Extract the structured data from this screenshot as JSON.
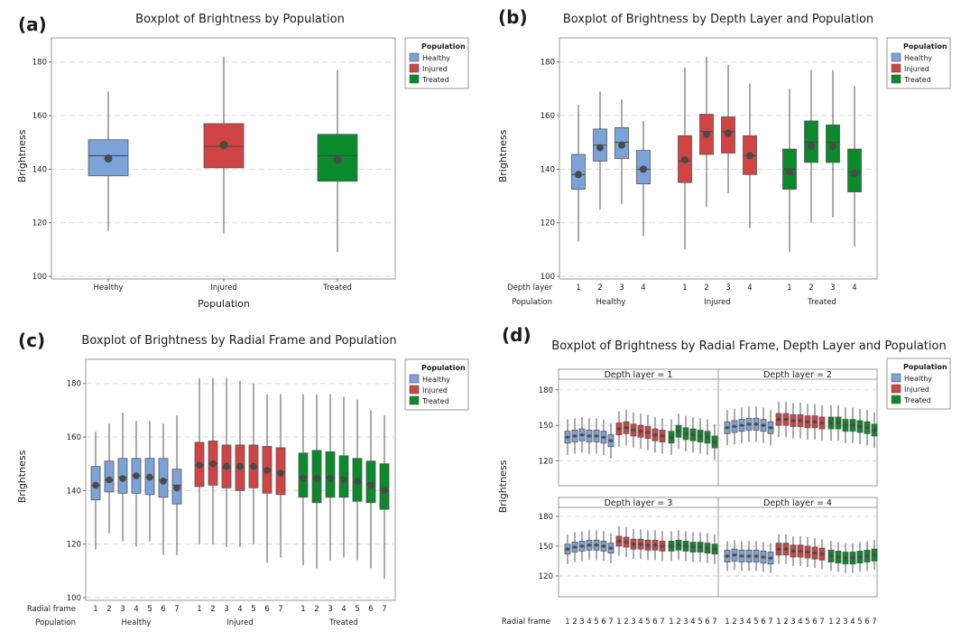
{
  "figure": {
    "panel_labels": [
      "(a)",
      "(b)",
      "(c)",
      "(d)"
    ]
  },
  "legend": {
    "title": "Population",
    "items": [
      "Healthy",
      "Injured",
      "Treated"
    ]
  },
  "colors": {
    "Healthy": "#7ba3d9",
    "Injured": "#d04444",
    "Treated": "#0a8a2a",
    "mean": "#4a4a4a",
    "whisker": "#555555",
    "grid": "#d8d8d8",
    "frame": "#9a9a9a"
  },
  "chart_data": [
    {
      "panel": "(a)",
      "type": "boxplot",
      "title": "Boxplot of Brightness by Population",
      "xlabel": "Population",
      "ylabel": "Brightness",
      "ylim": [
        99,
        189
      ],
      "yticks": [
        100,
        120,
        140,
        160,
        180
      ],
      "groups": [
        "Healthy",
        "Injured",
        "Treated"
      ],
      "boxes": [
        {
          "group": "Healthy",
          "min": 117,
          "q1": 137.5,
          "median": 145,
          "q3": 151,
          "max": 169,
          "mean": 144
        },
        {
          "group": "Injured",
          "min": 116,
          "q1": 140.5,
          "median": 148.5,
          "q3": 157,
          "max": 182,
          "mean": 149
        },
        {
          "group": "Treated",
          "min": 109,
          "q1": 135.5,
          "median": 145,
          "q3": 153,
          "max": 177,
          "mean": 143.5
        }
      ]
    },
    {
      "panel": "(b)",
      "type": "boxplot",
      "title": "Boxplot of Brightness by Depth Layer and Population",
      "xlabel": "",
      "ylabel": "Brightness",
      "ylim": [
        99,
        189
      ],
      "yticks": [
        100,
        120,
        140,
        160,
        180
      ],
      "row_labels": [
        "Depth layer",
        "Population"
      ],
      "groups": [
        "Healthy",
        "Injured",
        "Treated"
      ],
      "subgroups": [
        "1",
        "2",
        "3",
        "4"
      ],
      "boxes": [
        {
          "group": "Healthy",
          "sub": "1",
          "min": 113,
          "q1": 132.5,
          "median": 138,
          "q3": 145.5,
          "max": 164,
          "mean": 138
        },
        {
          "group": "Healthy",
          "sub": "2",
          "min": 125,
          "q1": 143,
          "median": 149,
          "q3": 155,
          "max": 169,
          "mean": 148
        },
        {
          "group": "Healthy",
          "sub": "3",
          "min": 127,
          "q1": 144,
          "median": 150,
          "q3": 155.5,
          "max": 166,
          "mean": 149
        },
        {
          "group": "Healthy",
          "sub": "4",
          "min": 115,
          "q1": 134.5,
          "median": 140,
          "q3": 147,
          "max": 158,
          "mean": 140
        },
        {
          "group": "Injured",
          "sub": "1",
          "min": 110,
          "q1": 135,
          "median": 143,
          "q3": 152.5,
          "max": 178,
          "mean": 143.5
        },
        {
          "group": "Injured",
          "sub": "2",
          "min": 126,
          "q1": 145.5,
          "median": 154,
          "q3": 160.5,
          "max": 182,
          "mean": 153
        },
        {
          "group": "Injured",
          "sub": "3",
          "min": 131,
          "q1": 146,
          "median": 154,
          "q3": 159.5,
          "max": 179,
          "mean": 153.5
        },
        {
          "group": "Injured",
          "sub": "4",
          "min": 118,
          "q1": 138,
          "median": 145,
          "q3": 152.5,
          "max": 172,
          "mean": 145
        },
        {
          "group": "Treated",
          "sub": "1",
          "min": 109,
          "q1": 132.5,
          "median": 140,
          "q3": 147.5,
          "max": 170,
          "mean": 139
        },
        {
          "group": "Treated",
          "sub": "2",
          "min": 120,
          "q1": 142.5,
          "median": 150,
          "q3": 158,
          "max": 177,
          "mean": 148.5
        },
        {
          "group": "Treated",
          "sub": "3",
          "min": 122,
          "q1": 142.5,
          "median": 150,
          "q3": 156.5,
          "max": 177,
          "mean": 148.5
        },
        {
          "group": "Treated",
          "sub": "4",
          "min": 111,
          "q1": 131.5,
          "median": 139,
          "q3": 147.5,
          "max": 171,
          "mean": 138.5
        }
      ]
    },
    {
      "panel": "(c)",
      "type": "boxplot",
      "title": "Boxplot of Brightness by Radial Frame and Population",
      "xlabel": "",
      "ylabel": "Brightness",
      "ylim": [
        99,
        189
      ],
      "yticks": [
        100,
        120,
        140,
        160,
        180
      ],
      "row_labels": [
        "Radial frame",
        "Population"
      ],
      "groups": [
        "Healthy",
        "Injured",
        "Treated"
      ],
      "subgroups": [
        "1",
        "2",
        "3",
        "4",
        "5",
        "6",
        "7"
      ],
      "boxes": [
        {
          "group": "Healthy",
          "sub": "1",
          "min": 118,
          "q1": 136.5,
          "median": 142,
          "q3": 149,
          "max": 162,
          "mean": 142
        },
        {
          "group": "Healthy",
          "sub": "2",
          "min": 124,
          "q1": 139.5,
          "median": 144,
          "q3": 151,
          "max": 165,
          "mean": 144
        },
        {
          "group": "Healthy",
          "sub": "3",
          "min": 121,
          "q1": 139,
          "median": 145,
          "q3": 152,
          "max": 169,
          "mean": 144.5
        },
        {
          "group": "Healthy",
          "sub": "4",
          "min": 119,
          "q1": 139,
          "median": 145.5,
          "q3": 152,
          "max": 166,
          "mean": 145.5
        },
        {
          "group": "Healthy",
          "sub": "5",
          "min": 121,
          "q1": 138.5,
          "median": 145,
          "q3": 152,
          "max": 166,
          "mean": 145
        },
        {
          "group": "Healthy",
          "sub": "6",
          "min": 116,
          "q1": 137.5,
          "median": 144,
          "q3": 152,
          "max": 165,
          "mean": 143.5
        },
        {
          "group": "Healthy",
          "sub": "7",
          "min": 116,
          "q1": 135,
          "median": 142,
          "q3": 148,
          "max": 168,
          "mean": 141
        },
        {
          "group": "Injured",
          "sub": "1",
          "min": 120,
          "q1": 141.5,
          "median": 149.5,
          "q3": 158,
          "max": 182,
          "mean": 149.5
        },
        {
          "group": "Injured",
          "sub": "2",
          "min": 120,
          "q1": 142,
          "median": 150,
          "q3": 158.5,
          "max": 182,
          "mean": 150
        },
        {
          "group": "Injured",
          "sub": "3",
          "min": 119,
          "q1": 141,
          "median": 148.5,
          "q3": 157,
          "max": 182,
          "mean": 149
        },
        {
          "group": "Injured",
          "sub": "4",
          "min": 119,
          "q1": 140,
          "median": 148.5,
          "q3": 157,
          "max": 181,
          "mean": 149
        },
        {
          "group": "Injured",
          "sub": "5",
          "min": 120,
          "q1": 141,
          "median": 149,
          "q3": 157,
          "max": 180,
          "mean": 149
        },
        {
          "group": "Injured",
          "sub": "6",
          "min": 113,
          "q1": 139,
          "median": 148,
          "q3": 156.5,
          "max": 176,
          "mean": 147.5
        },
        {
          "group": "Injured",
          "sub": "7",
          "min": 115,
          "q1": 138.5,
          "median": 147,
          "q3": 156,
          "max": 176,
          "mean": 146.5
        },
        {
          "group": "Treated",
          "sub": "1",
          "min": 112,
          "q1": 137.5,
          "median": 145,
          "q3": 154,
          "max": 176,
          "mean": 144.5
        },
        {
          "group": "Treated",
          "sub": "2",
          "min": 111,
          "q1": 135.5,
          "median": 144.5,
          "q3": 155,
          "max": 176,
          "mean": 144.5
        },
        {
          "group": "Treated",
          "sub": "3",
          "min": 114,
          "q1": 137.5,
          "median": 145,
          "q3": 154.5,
          "max": 176,
          "mean": 144.5
        },
        {
          "group": "Treated",
          "sub": "4",
          "min": 115,
          "q1": 137.5,
          "median": 144.5,
          "q3": 153,
          "max": 175,
          "mean": 144
        },
        {
          "group": "Treated",
          "sub": "5",
          "min": 114,
          "q1": 136,
          "median": 143,
          "q3": 152,
          "max": 174,
          "mean": 143.5
        },
        {
          "group": "Treated",
          "sub": "6",
          "min": 111,
          "q1": 135.5,
          "median": 142.5,
          "q3": 151,
          "max": 170,
          "mean": 142
        },
        {
          "group": "Treated",
          "sub": "7",
          "min": 107,
          "q1": 133,
          "median": 140,
          "q3": 150,
          "max": 168,
          "mean": 140
        }
      ]
    },
    {
      "panel": "(d)",
      "type": "boxplot",
      "title": "Boxplot of Brightness by Radial Frame, Depth Layer and Population",
      "xlabel": "",
      "ylabel": "Brightness",
      "ylim": [
        99,
        189
      ],
      "yticks": [
        120,
        150,
        180
      ],
      "row_label": "Radial frame",
      "facet_titles": [
        "Depth layer = 1",
        "Depth layer = 2",
        "Depth layer = 3",
        "Depth layer = 4"
      ],
      "groups": [
        "Healthy",
        "Injured",
        "Treated"
      ],
      "subgroups": [
        "1",
        "2",
        "3",
        "4",
        "5",
        "6",
        "7"
      ],
      "facets": [
        {
          "title": "Depth layer = 1",
          "medians": {
            "Healthy": [
              140,
              141,
              142,
              141,
              141,
              140,
              137
            ],
            "Injured": [
              147,
              148,
              146,
              145,
              144,
              142,
              141
            ],
            "Treated": [
              140,
              145,
              143,
              142,
              141,
              140,
              136
            ]
          },
          "spread": 5,
          "whisker": 15
        },
        {
          "title": "Depth layer = 2",
          "medians": {
            "Healthy": [
              148,
              149,
              150,
              151,
              151,
              150,
              148
            ],
            "Injured": [
              155,
              155,
              154,
              154,
              153,
              153,
              152
            ],
            "Treated": [
              152,
              152,
              150,
              150,
              149,
              148,
              146
            ]
          },
          "spread": 5,
          "whisker": 15
        },
        {
          "title": "Depth layer = 3",
          "medians": {
            "Healthy": [
              147,
              149,
              150,
              151,
              151,
              150,
              148
            ],
            "Injured": [
              155,
              154,
              152,
              152,
              151,
              151,
              150
            ],
            "Treated": [
              150,
              151,
              150,
              149,
              149,
              148,
              147
            ]
          },
          "spread": 5,
          "whisker": 15
        },
        {
          "title": "Depth layer = 4",
          "medians": {
            "Healthy": [
              140,
              141,
              140,
              140,
              140,
              139,
              138
            ],
            "Injured": [
              147,
              147,
              145,
              145,
              144,
              143,
              142
            ],
            "Treated": [
              140,
              139,
              138,
              138,
              139,
              140,
              141
            ]
          },
          "spread": 6,
          "whisker": 15
        }
      ]
    }
  ]
}
